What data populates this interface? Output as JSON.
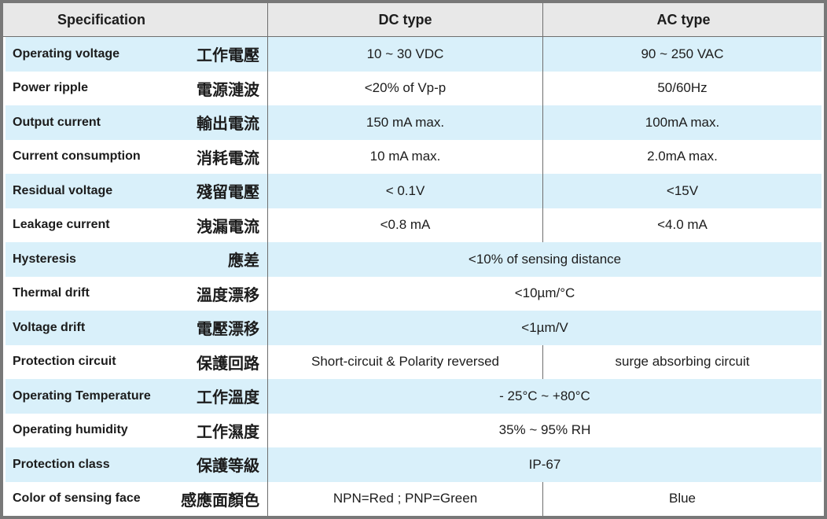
{
  "colors": {
    "outer_border": "#787878",
    "grid_line": "#6e6e6e",
    "header_bg": "#e8e8e8",
    "row_blue": "#d9f0fa",
    "row_white": "#ffffff",
    "text": "#1c1c1c"
  },
  "table": {
    "header": {
      "spec": "Specification",
      "dc": "DC type",
      "ac": "AC type"
    },
    "rows": [
      {
        "en": "Operating voltage",
        "zh": "工作電壓",
        "dc": "10 ~ 30 VDC",
        "ac": "90 ~ 250 VAC"
      },
      {
        "en": "Power ripple",
        "zh": "電源漣波",
        "dc": "<20% of Vp-p",
        "ac": "50/60Hz"
      },
      {
        "en": "Output current",
        "zh": "輸出電流",
        "dc": "150 mA max.",
        "ac": "100mA max."
      },
      {
        "en": "Current consumption",
        "zh": "消耗電流",
        "dc": "10 mA max.",
        "ac": "2.0mA max."
      },
      {
        "en": "Residual voltage",
        "zh": "殘留電壓",
        "dc": "< 0.1V",
        "ac": "<15V"
      },
      {
        "en": "Leakage current",
        "zh": "洩漏電流",
        "dc": "<0.8 mA",
        "ac": "<4.0 mA"
      },
      {
        "en": "Hysteresis",
        "zh": "應差",
        "merged": "<10% of sensing distance"
      },
      {
        "en": "Thermal drift",
        "zh": "溫度漂移",
        "merged": "<10µm/°C"
      },
      {
        "en": "Voltage drift",
        "zh": "電壓漂移",
        "merged": "<1µm/V"
      },
      {
        "en": "Protection circuit",
        "zh": "保護回路",
        "dc": "Short-circuit & Polarity reversed",
        "ac": "surge absorbing circuit"
      },
      {
        "en": "Operating Temperature",
        "zh": "工作溫度",
        "merged": "- 25°C ~ +80°C"
      },
      {
        "en": "Operating humidity",
        "zh": "工作濕度",
        "merged": "35% ~ 95% RH"
      },
      {
        "en": "Protection class",
        "zh": "保護等級",
        "merged": "IP-67"
      },
      {
        "en": "Color of sensing face",
        "zh": "感應面顏色",
        "dc": "NPN=Red ; PNP=Green",
        "ac": "Blue"
      }
    ]
  }
}
